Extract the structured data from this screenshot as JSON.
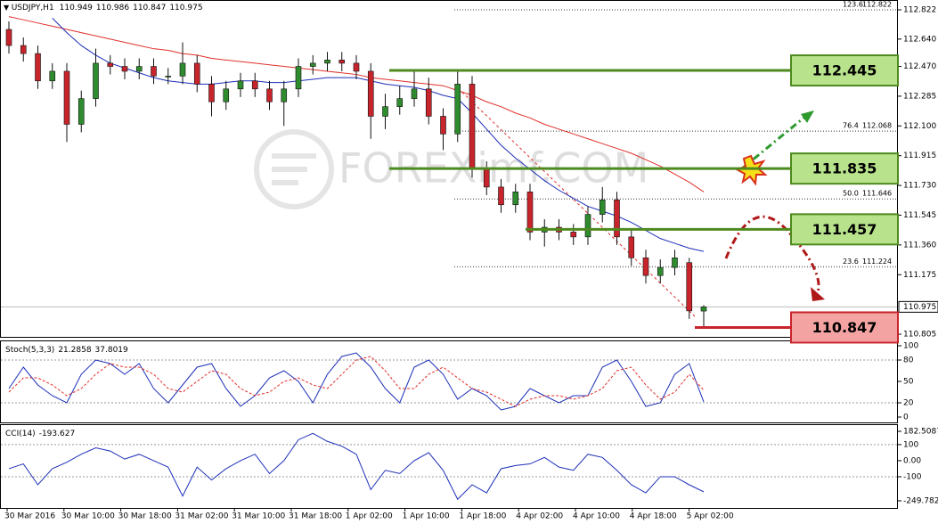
{
  "header": {
    "symbol": "USDJPY,H1",
    "ohlc": [
      110.949,
      110.986,
      110.847,
      110.975
    ]
  },
  "watermark": "FOREXimf.COM",
  "time_axis": [
    "30 Mar 2016",
    "30 Mar 10:00",
    "30 Mar 18:00",
    "31 Mar 02:00",
    "31 Mar 10:00",
    "31 Mar 18:00",
    "1 Apr 02:00",
    "1 Apr 10:00",
    "1 Apr 18:00",
    "4 Apr 02:00",
    "4 Apr 10:00",
    "4 Apr 18:00",
    "5 Apr 02:00"
  ],
  "chart_data": [
    {
      "type": "candlestick",
      "open": [
        112.7,
        112.6,
        112.55,
        112.38,
        112.44,
        112.11,
        112.27,
        112.49,
        112.47,
        112.44,
        112.47,
        112.41,
        112.41,
        112.49,
        112.36,
        112.25,
        112.33,
        112.38,
        112.33,
        112.25,
        112.33,
        112.47,
        112.49,
        112.51,
        112.49,
        112.44,
        112.16,
        112.22,
        112.27,
        112.33,
        112.16,
        112.05,
        112.36,
        111.83,
        111.72,
        111.61,
        111.69,
        111.44,
        111.47,
        111.44,
        111.41,
        111.55,
        111.64,
        111.41,
        111.28,
        111.17,
        111.22,
        111.25,
        110.949
      ],
      "high": [
        112.75,
        112.65,
        112.6,
        112.49,
        112.49,
        112.32,
        112.58,
        112.54,
        112.52,
        112.52,
        112.52,
        112.46,
        112.62,
        112.54,
        112.41,
        112.38,
        112.43,
        112.43,
        112.38,
        112.38,
        112.52,
        112.54,
        112.56,
        112.56,
        112.54,
        112.49,
        112.3,
        112.35,
        112.45,
        112.4,
        112.21,
        112.45,
        112.41,
        111.88,
        111.77,
        111.74,
        111.74,
        111.52,
        111.52,
        111.49,
        111.6,
        111.72,
        111.69,
        111.46,
        111.33,
        111.27,
        111.33,
        111.28,
        110.986
      ],
      "low": [
        112.55,
        112.5,
        112.33,
        112.33,
        112.0,
        112.06,
        112.22,
        112.42,
        112.39,
        112.39,
        112.36,
        112.36,
        112.36,
        112.31,
        112.16,
        112.2,
        112.28,
        112.28,
        112.2,
        112.1,
        112.28,
        112.42,
        112.44,
        112.44,
        112.39,
        112.02,
        112.08,
        112.17,
        112.22,
        112.11,
        111.95,
        112.0,
        111.78,
        111.67,
        111.56,
        111.56,
        111.39,
        111.35,
        111.39,
        111.36,
        111.36,
        111.5,
        111.36,
        111.23,
        111.12,
        111.12,
        111.17,
        110.9,
        110.847
      ],
      "close": [
        112.6,
        112.55,
        112.38,
        112.44,
        112.11,
        112.27,
        112.49,
        112.47,
        112.44,
        112.47,
        112.41,
        112.41,
        112.49,
        112.36,
        112.25,
        112.33,
        112.38,
        112.33,
        112.25,
        112.33,
        112.47,
        112.49,
        112.51,
        112.49,
        112.44,
        112.16,
        112.22,
        112.27,
        112.33,
        112.16,
        112.05,
        112.36,
        111.83,
        111.72,
        111.61,
        111.69,
        111.44,
        111.47,
        111.44,
        111.41,
        111.55,
        111.64,
        111.41,
        111.28,
        111.17,
        111.22,
        111.28,
        110.95,
        110.975
      ],
      "up_color": "#2e8b2e",
      "down_color": "#c8242c",
      "series": [
        {
          "color": "#e0302a",
          "values": [
            112.78,
            112.76,
            112.74,
            112.72,
            112.7,
            112.68,
            112.66,
            112.64,
            112.62,
            112.6,
            112.58,
            112.57,
            112.55,
            112.54,
            112.52,
            112.51,
            112.5,
            112.49,
            112.48,
            112.47,
            112.46,
            112.45,
            112.44,
            112.43,
            112.42,
            112.4,
            112.39,
            112.38,
            112.37,
            112.36,
            112.35,
            112.32,
            112.29,
            112.25,
            112.22,
            112.18,
            112.15,
            112.11,
            112.08,
            112.05,
            112.02,
            111.99,
            111.96,
            111.93,
            111.89,
            111.85,
            111.8,
            111.75,
            111.69
          ]
        },
        {
          "color": "#1c2fb8",
          "values": [
            null,
            null,
            null,
            112.77,
            112.68,
            112.6,
            112.54,
            112.49,
            112.46,
            112.43,
            112.4,
            112.38,
            112.37,
            112.36,
            112.36,
            112.37,
            112.38,
            112.38,
            112.37,
            112.37,
            112.38,
            112.39,
            112.4,
            112.4,
            112.4,
            112.38,
            112.36,
            112.35,
            112.34,
            112.32,
            112.29,
            112.27,
            112.18,
            112.08,
            111.98,
            111.9,
            111.83,
            111.76,
            111.7,
            111.65,
            111.6,
            111.57,
            111.54,
            111.5,
            111.45,
            111.4,
            111.37,
            111.34,
            111.32
          ]
        }
      ],
      "ylim": [
        110.783,
        112.883
      ],
      "yticks": [
        112.822,
        {
          "value": 112.64,
          "label": "112.640"
        },
        {
          "value": 112.47,
          "label": "112.470"
        },
        112.285,
        {
          "value": 112.1,
          "label": "112.100"
        },
        111.915,
        {
          "value": 111.73,
          "label": "111.730"
        },
        111.545,
        {
          "value": 111.36,
          "label": "111.360"
        },
        111.175,
        110.805
      ],
      "fib_levels": [
        {
          "ratio": "123.6",
          "price": 112.822
        },
        {
          "ratio": "76.4",
          "price": 112.068
        },
        {
          "ratio": "50.0",
          "price": 111.646
        },
        {
          "ratio": "23.6",
          "price": 111.224
        }
      ],
      "levels": [
        {
          "value": 112.445,
          "color": "#4e8a1e"
        },
        {
          "value": 111.835,
          "color": "#4e8a1e"
        },
        {
          "value": 111.457,
          "color": "#4e8a1e"
        },
        {
          "value": 110.847,
          "color": "#c8242c"
        }
      ]
    },
    {
      "type": "line",
      "title": "Stoch(5,3,3)",
      "readout": [
        21.2858,
        37.8019
      ],
      "series": [
        {
          "color": "#1c2fb8",
          "values": [
            40,
            70,
            45,
            30,
            20,
            60,
            80,
            75,
            60,
            75,
            40,
            20,
            45,
            70,
            75,
            40,
            15,
            30,
            55,
            65,
            50,
            20,
            60,
            85,
            90,
            70,
            40,
            20,
            70,
            80,
            60,
            25,
            40,
            30,
            10,
            15,
            40,
            30,
            20,
            30,
            30,
            70,
            80,
            50,
            15,
            20,
            60,
            75,
            21.2858
          ]
        },
        {
          "color": "#e0302a",
          "dashed": true,
          "values": [
            35,
            55,
            55,
            45,
            30,
            40,
            60,
            75,
            70,
            70,
            60,
            40,
            35,
            50,
            65,
            60,
            40,
            30,
            35,
            50,
            55,
            45,
            40,
            60,
            80,
            85,
            65,
            40,
            40,
            60,
            70,
            55,
            40,
            35,
            25,
            15,
            25,
            30,
            30,
            25,
            30,
            40,
            65,
            70,
            45,
            25,
            35,
            60,
            37.8019
          ]
        }
      ],
      "ylim": [
        -8.75,
        106.25
      ],
      "yticks": [
        100,
        80,
        50,
        20,
        0
      ],
      "level_lines": [
        80,
        20
      ]
    },
    {
      "type": "line",
      "title": "CCI(14)",
      "readout": [
        -193.627
      ],
      "series": [
        {
          "color": "#1c2fb8",
          "values": [
            -50,
            -20,
            -150,
            -50,
            -10,
            40,
            80,
            60,
            10,
            40,
            0,
            -40,
            -220,
            -40,
            -120,
            -50,
            0,
            40,
            -80,
            0,
            130,
            170,
            120,
            90,
            40,
            -180,
            -60,
            -80,
            0,
            50,
            -60,
            -240,
            -150,
            -200,
            -50,
            -30,
            -20,
            20,
            -40,
            -60,
            40,
            20,
            -60,
            -150,
            -200,
            -100,
            -100,
            -150,
            -193.627
          ]
        }
      ],
      "ylim": [
        -294.1,
        221.3
      ],
      "yticks": [
        182.5087,
        100,
        {
          "value": 0,
          "label": "0.00"
        },
        -100,
        -249.782
      ],
      "level_lines": [
        100,
        -100
      ]
    }
  ]
}
